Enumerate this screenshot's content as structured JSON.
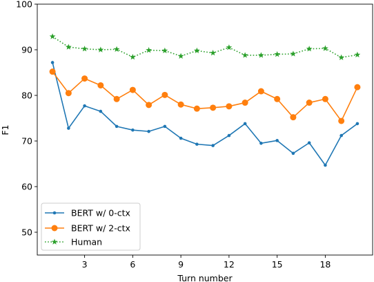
{
  "chart_data": {
    "type": "line",
    "xlabel": "Turn number",
    "ylabel": "F1",
    "xlim": [
      0.05,
      20.95
    ],
    "ylim": [
      45,
      100
    ],
    "xticks": [
      3,
      6,
      9,
      12,
      15,
      18
    ],
    "yticks": [
      50,
      60,
      70,
      80,
      90,
      100
    ],
    "grid": false,
    "legend": "lower-left",
    "x": [
      1,
      2,
      3,
      4,
      5,
      6,
      7,
      8,
      9,
      10,
      11,
      12,
      13,
      14,
      15,
      16,
      17,
      18,
      19,
      20
    ],
    "series": [
      {
        "name": "BERT w/ 0-ctx",
        "color": "#1f77b4",
        "marker": "point",
        "linestyle": "solid",
        "values": [
          87.2,
          72.8,
          77.7,
          76.5,
          73.2,
          72.4,
          72.1,
          73.2,
          70.6,
          69.3,
          69.0,
          71.2,
          73.8,
          69.5,
          70.1,
          67.3,
          69.6,
          64.7,
          71.2,
          73.8
        ]
      },
      {
        "name": "BERT w/ 2-ctx",
        "color": "#ff7f0e",
        "marker": "circle",
        "linestyle": "solid",
        "values": [
          85.2,
          80.5,
          83.7,
          82.2,
          79.2,
          81.2,
          77.9,
          80.1,
          78.0,
          77.1,
          77.3,
          77.6,
          78.4,
          80.9,
          79.2,
          75.2,
          78.4,
          79.2,
          74.4,
          81.8
        ]
      },
      {
        "name": "Human",
        "color": "#2ca02c",
        "marker": "star",
        "linestyle": "dotted",
        "values": [
          92.9,
          90.6,
          90.2,
          90.0,
          90.1,
          88.4,
          89.9,
          89.8,
          88.6,
          89.8,
          89.3,
          90.5,
          88.8,
          88.8,
          89.0,
          89.1,
          90.2,
          90.3,
          88.3,
          88.9
        ]
      }
    ]
  }
}
